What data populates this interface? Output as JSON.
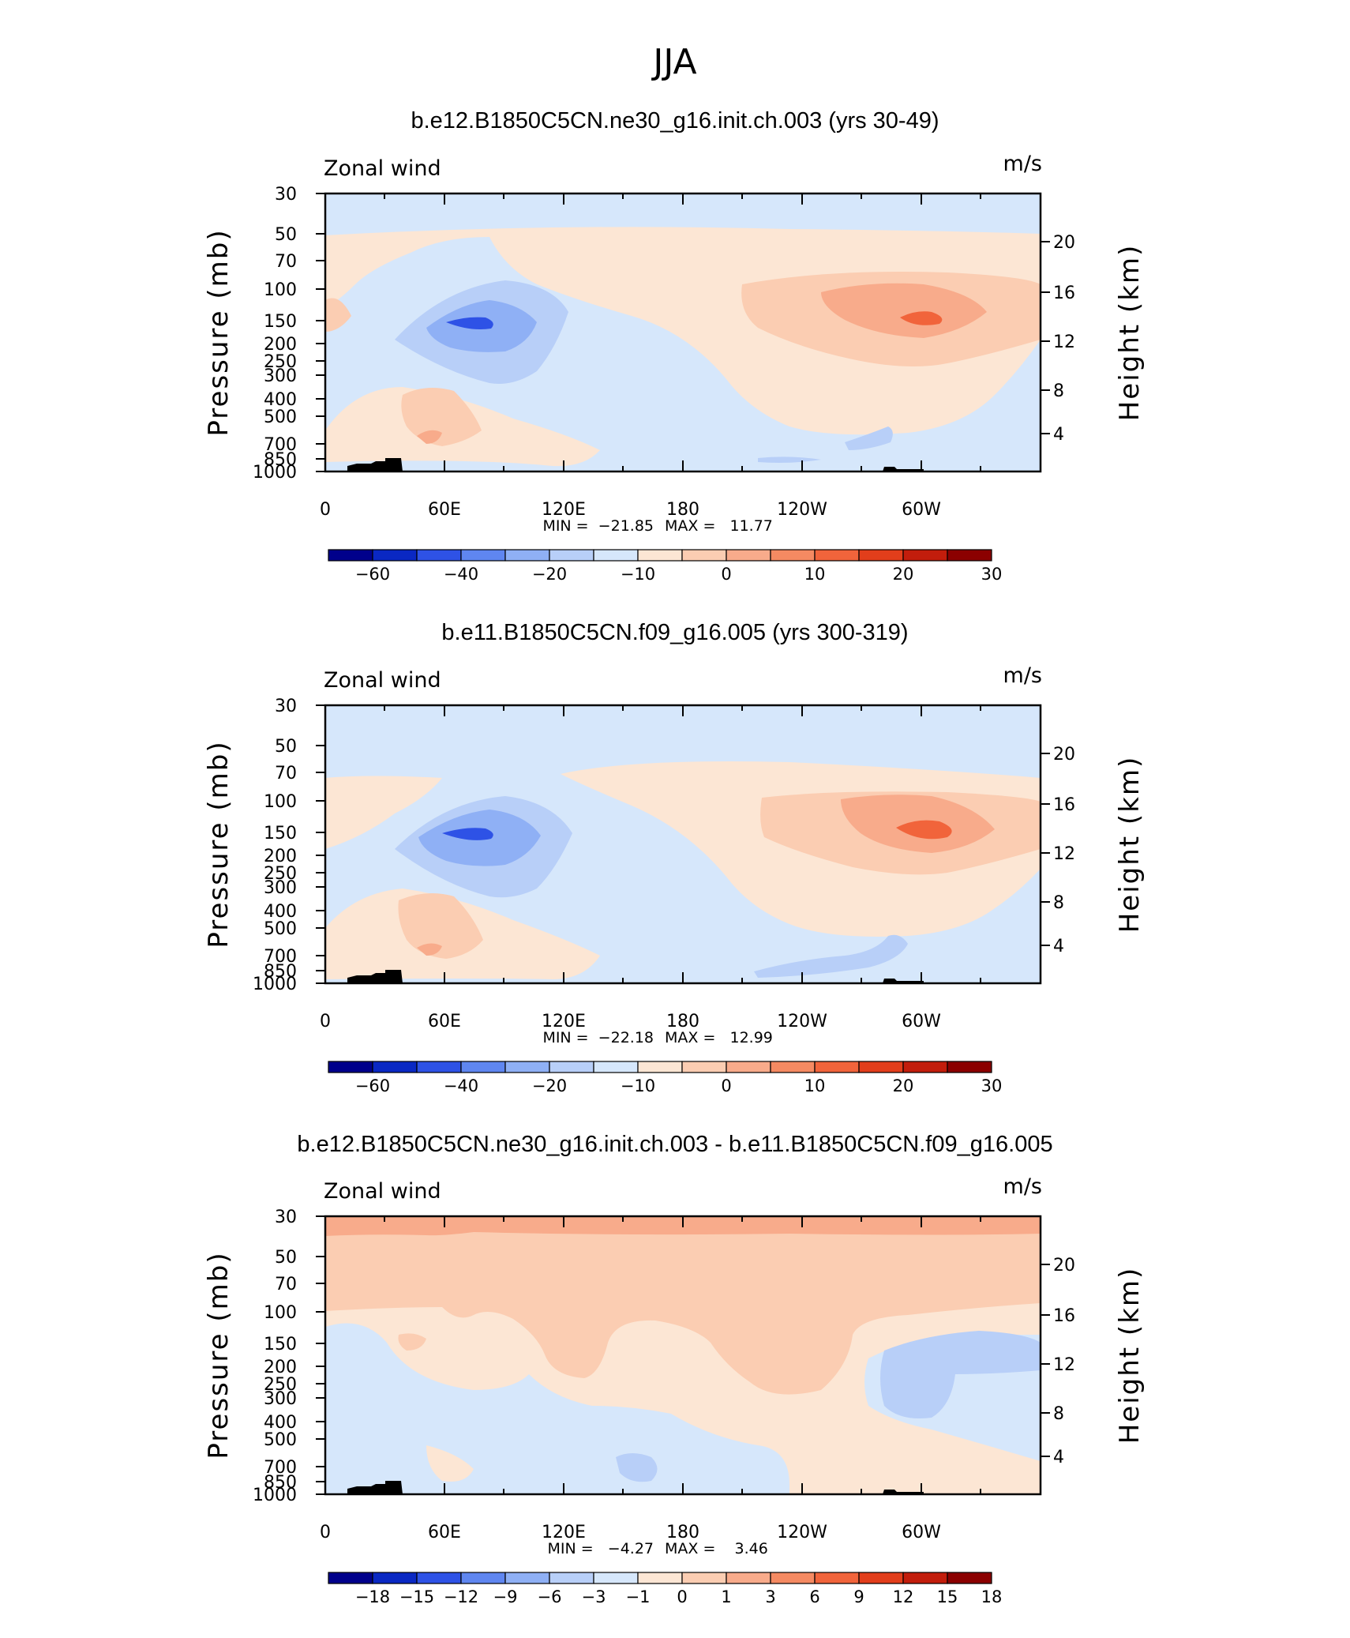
{
  "figure_title": "JJA",
  "chart_data": [
    {
      "type": "heatmap",
      "title": "b.e12.B1850C5CN.ne30_g16.init.ch.003 (yrs 30-49)",
      "variable": "Zonal wind",
      "units": "m/s",
      "xlabel": "",
      "ylabel": "Pressure  (mb)",
      "ylabel_right": "Height  (km)",
      "x_tick_labels": [
        "0",
        "60E",
        "120E",
        "180",
        "120W",
        "60W"
      ],
      "y_tick_labels": [
        "30",
        "50",
        "70",
        "100",
        "150",
        "200",
        "250",
        "300",
        "400",
        "500",
        "700",
        "850",
        "1000"
      ],
      "height_tick_labels": [
        "20",
        "16",
        "12",
        "8",
        "4"
      ],
      "min_label": "MIN =  −21.85",
      "max_label": "MAX =   11.77",
      "min": -21.85,
      "max": 11.77,
      "colorbar_labels": [
        "−60",
        "−40",
        "−20",
        "−10",
        "0",
        "10",
        "20",
        "30"
      ],
      "colorbar_colors": [
        "#00008b",
        "#0a28c3",
        "#2e52e6",
        "#5f86f0",
        "#8fb0f5",
        "#b8cff8",
        "#d6e7fb",
        "#fce6d4",
        "#fbcdb2",
        "#f8ab8b",
        "#f58a62",
        "#f1643b",
        "#e23e1b",
        "#c21d0c",
        "#8b0000"
      ]
    },
    {
      "type": "heatmap",
      "title": "b.e11.B1850C5CN.f09_g16.005 (yrs 300-319)",
      "variable": "Zonal wind",
      "units": "m/s",
      "xlabel": "",
      "ylabel": "Pressure  (mb)",
      "ylabel_right": "Height  (km)",
      "x_tick_labels": [
        "0",
        "60E",
        "120E",
        "180",
        "120W",
        "60W"
      ],
      "y_tick_labels": [
        "30",
        "50",
        "70",
        "100",
        "150",
        "200",
        "250",
        "300",
        "400",
        "500",
        "700",
        "850",
        "1000"
      ],
      "height_tick_labels": [
        "20",
        "16",
        "12",
        "8",
        "4"
      ],
      "min_label": "MIN =  −22.18",
      "max_label": "MAX =   12.99",
      "min": -22.18,
      "max": 12.99,
      "colorbar_labels": [
        "−60",
        "−40",
        "−20",
        "−10",
        "0",
        "10",
        "20",
        "30"
      ],
      "colorbar_colors": [
        "#00008b",
        "#0a28c3",
        "#2e52e6",
        "#5f86f0",
        "#8fb0f5",
        "#b8cff8",
        "#d6e7fb",
        "#fce6d4",
        "#fbcdb2",
        "#f8ab8b",
        "#f58a62",
        "#f1643b",
        "#e23e1b",
        "#c21d0c",
        "#8b0000"
      ]
    },
    {
      "type": "heatmap",
      "title": "b.e12.B1850C5CN.ne30_g16.init.ch.003 - b.e11.B1850C5CN.f09_g16.005",
      "variable": "Zonal wind",
      "units": "m/s",
      "xlabel": "",
      "ylabel": "Pressure  (mb)",
      "ylabel_right": "Height  (km)",
      "x_tick_labels": [
        "0",
        "60E",
        "120E",
        "180",
        "120W",
        "60W"
      ],
      "y_tick_labels": [
        "30",
        "50",
        "70",
        "100",
        "150",
        "200",
        "250",
        "300",
        "400",
        "500",
        "700",
        "850",
        "1000"
      ],
      "height_tick_labels": [
        "20",
        "16",
        "12",
        "8",
        "4"
      ],
      "min_label": "MIN =   −4.27",
      "max_label": "MAX =    3.46",
      "min": -4.27,
      "max": 3.46,
      "colorbar_labels": [
        "−18",
        "−15",
        "−12",
        "−9",
        "−6",
        "−3",
        "−1",
        "0",
        "1",
        "3",
        "6",
        "9",
        "12",
        "15",
        "18"
      ],
      "colorbar_colors": [
        "#00008b",
        "#0a28c3",
        "#2e52e6",
        "#5f86f0",
        "#8fb0f5",
        "#b8cff8",
        "#d6e7fb",
        "#fce6d4",
        "#fbcdb2",
        "#f8ab8b",
        "#f58a62",
        "#f1643b",
        "#e23e1b",
        "#c21d0c",
        "#8b0000"
      ]
    }
  ]
}
